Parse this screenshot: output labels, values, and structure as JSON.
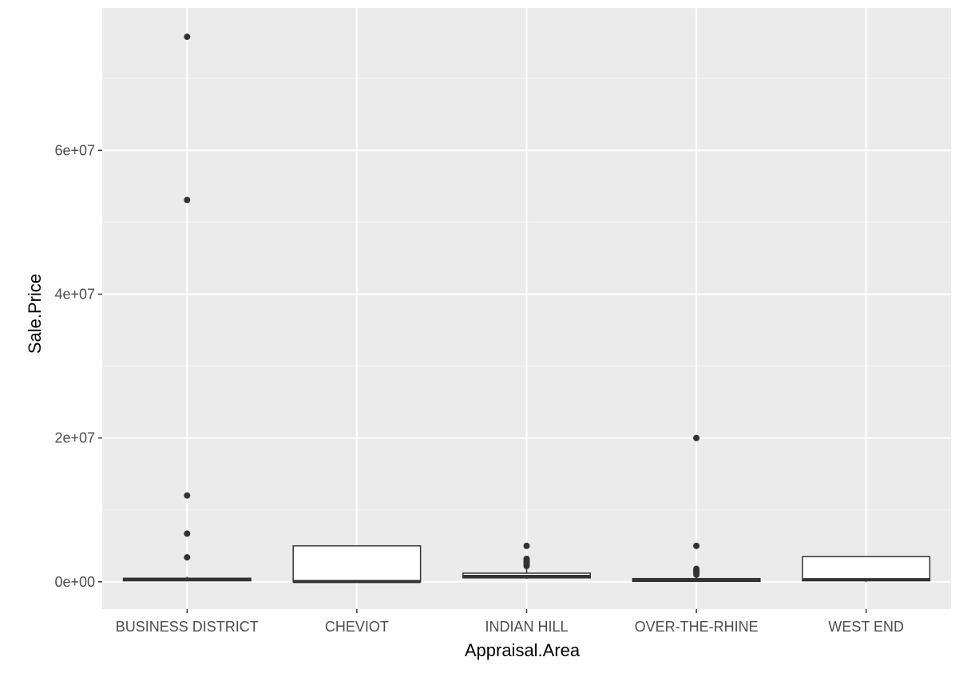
{
  "chart_data": {
    "type": "boxplot",
    "title": "",
    "xlabel": "Appraisal.Area",
    "ylabel": "Sale.Price",
    "categories": [
      "BUSINESS DISTRICT",
      "CHEVIOT",
      "INDIAN HILL",
      "OVER-THE-RHINE",
      "WEST END"
    ],
    "y_ticks": [
      {
        "value": 0,
        "label": "0e+00"
      },
      {
        "value": 20000000,
        "label": "2e+07"
      },
      {
        "value": 40000000,
        "label": "4e+07"
      },
      {
        "value": 60000000,
        "label": "6e+07"
      }
    ],
    "ylim": [
      -3800000,
      79800000
    ],
    "grid": true,
    "boxes": [
      {
        "category": "BUSINESS DISTRICT",
        "lower": 100000,
        "q1": 150000,
        "median": 300000,
        "q3": 500000,
        "upper": 700000,
        "outliers": [
          75800000,
          53100000,
          12000000,
          6700000,
          3400000
        ]
      },
      {
        "category": "CHEVIOT",
        "lower": 0,
        "q1": 0,
        "median": 50000,
        "q3": 5000000,
        "upper": 5000000,
        "outliers": []
      },
      {
        "category": "INDIAN HILL",
        "lower": 400000,
        "q1": 550000,
        "median": 750000,
        "q3": 1200000,
        "upper": 1900000,
        "outliers": [
          5000000,
          3200000,
          3000000,
          2800000,
          2600000,
          2400000,
          2200000
        ]
      },
      {
        "category": "OVER-THE-RHINE",
        "lower": 0,
        "q1": 50000,
        "median": 200000,
        "q3": 450000,
        "upper": 900000,
        "outliers": [
          20000000,
          5000000,
          1800000,
          1600000,
          1400000,
          1200000,
          1000000
        ]
      },
      {
        "category": "WEST END",
        "lower": 0,
        "q1": 150000,
        "median": 300000,
        "q3": 3500000,
        "upper": 3500000,
        "outliers": []
      }
    ],
    "colors": {
      "panel": "#ebebeb",
      "grid_major": "#ffffff",
      "grid_minor": "#f5f5f5",
      "box_fill": "#ffffff",
      "box_line": "#333333",
      "point": "#333333",
      "tick": "#4d4d4d"
    }
  }
}
